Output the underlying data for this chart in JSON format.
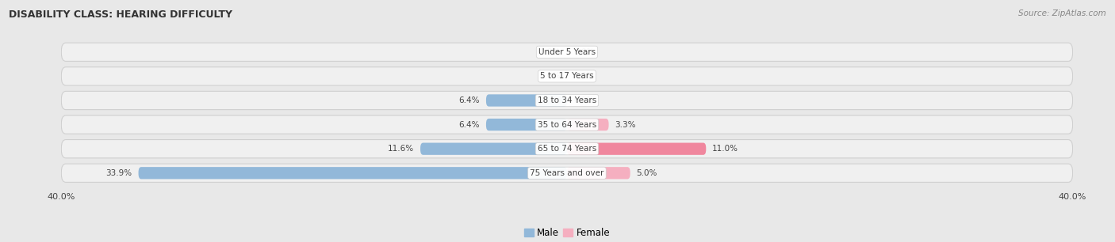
{
  "title": "DISABILITY CLASS: HEARING DIFFICULTY",
  "source": "Source: ZipAtlas.com",
  "categories": [
    "Under 5 Years",
    "5 to 17 Years",
    "18 to 34 Years",
    "35 to 64 Years",
    "65 to 74 Years",
    "75 Years and over"
  ],
  "male_values": [
    0.0,
    0.0,
    6.4,
    6.4,
    11.6,
    33.9
  ],
  "female_values": [
    0.0,
    0.0,
    0.0,
    3.3,
    11.0,
    5.0
  ],
  "male_color": "#92b8d9",
  "female_color": "#f0879e",
  "female_color_light": "#f5afc0",
  "axis_limit": 40.0,
  "background_color": "#e8e8e8",
  "row_bg_color": "#f0f0f0",
  "row_border_color": "#d0d0d0",
  "label_color": "#444444",
  "title_color": "#333333",
  "source_color": "#888888"
}
